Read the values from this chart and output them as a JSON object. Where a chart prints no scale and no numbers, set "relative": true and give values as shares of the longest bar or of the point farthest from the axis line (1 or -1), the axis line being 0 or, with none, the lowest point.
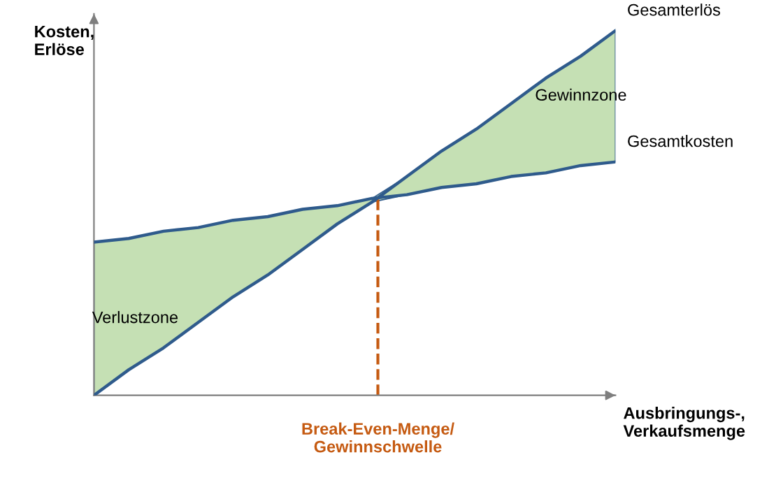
{
  "chart_data": {
    "type": "line",
    "relative": true,
    "xlabel": "Ausbringungs-,\nVerkaufsmenge",
    "ylabel": "Kosten,\nErlöse",
    "categories": [
      null,
      null,
      null,
      null,
      null,
      null,
      null,
      null,
      null,
      null,
      null,
      null,
      null,
      null,
      null,
      null
    ],
    "series": [
      {
        "name": "Gesamterlös",
        "color": "#2f5b8c",
        "values": [
          0,
          0.07,
          0.13,
          0.2,
          0.27,
          0.33,
          0.4,
          0.47,
          0.53,
          0.6,
          0.67,
          0.73,
          0.8,
          0.87,
          0.93,
          1
        ],
        "lower": [
          0,
          0.07,
          0.13,
          0.2,
          0.27,
          0.33,
          0.4,
          0.47,
          0.53,
          0.55,
          0.57,
          0.58,
          0.6,
          0.61,
          0.63,
          0.64
        ],
        "upper": [
          0.42,
          0.43,
          0.45,
          0.46,
          0.48,
          0.49,
          0.51,
          0.52,
          0.54,
          0.6,
          0.67,
          0.73,
          0.8,
          0.87,
          0.93,
          1
        ]
      },
      {
        "name": "Gesamtkosten",
        "color": "#2f5b8c",
        "values": [
          0.42,
          0.43,
          0.45,
          0.46,
          0.48,
          0.49,
          0.51,
          0.52,
          0.54,
          0.55,
          0.57,
          0.58,
          0.6,
          0.61,
          0.63,
          0.64
        ]
      }
    ],
    "annotations": [
      "Verlustzone",
      "Gewinnzone",
      "Break-Even-Menge/\nGewinnschwelle"
    ],
    "marker": "none",
    "line_style": "solid"
  }
}
